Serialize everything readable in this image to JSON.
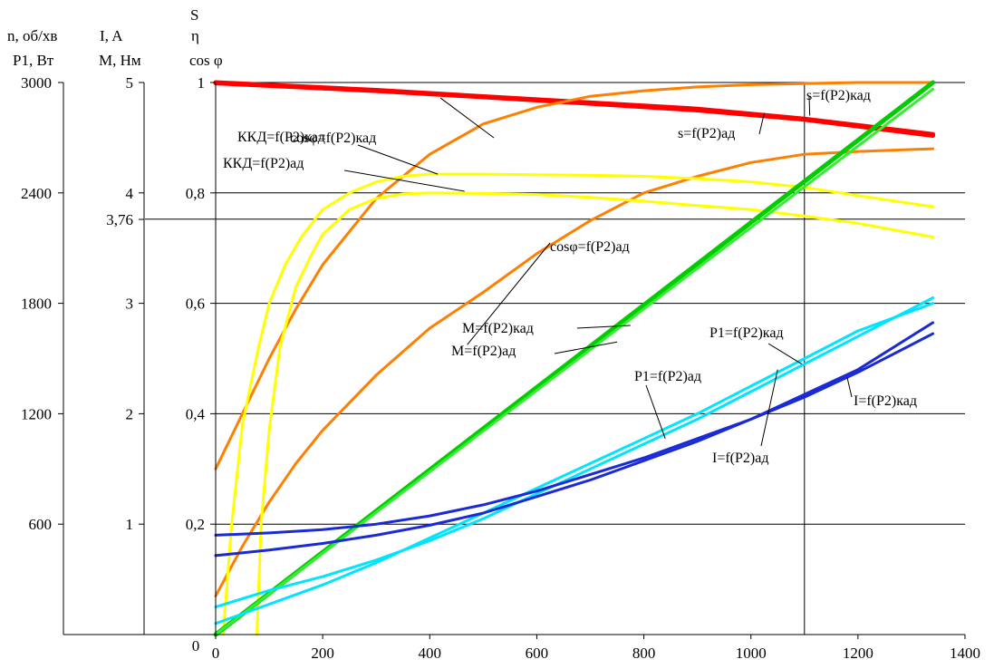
{
  "chart_data": {
    "type": "line",
    "title": "",
    "axes": {
      "x": {
        "ticks": [
          "0",
          "200",
          "400",
          "600",
          "800",
          "1000",
          "1200",
          "1400"
        ],
        "range": [
          0,
          1400
        ],
        "label": ""
      },
      "y_speed_power": {
        "label_line1": "n, об/хв",
        "label_line2": "P1, Вт",
        "ticks": [
          "3000",
          "2400",
          "1800",
          "1200",
          "600"
        ],
        "range": [
          0,
          3000
        ]
      },
      "y_current_torque": {
        "label_line1": "I, A",
        "label_line2": "M, Нм",
        "ticks": [
          "5",
          "4",
          "3,76",
          "3",
          "2",
          "1"
        ],
        "range": [
          0,
          5
        ]
      },
      "y_ratio": {
        "label_line1": "S",
        "label_line2": "η",
        "label_line3": "cos φ",
        "ticks": [
          "1",
          "0,8",
          "0,6",
          "0,4",
          "0,2"
        ],
        "range": [
          0,
          1
        ]
      },
      "origin_label": "0"
    },
    "reference_lines": {
      "x": 1100,
      "y_ratio": 0.7525
    },
    "grid": true,
    "series": [
      {
        "name": "s=f(P2)кад",
        "color": "#ff0000",
        "width": 5,
        "x": [
          0,
          300,
          600,
          900,
          1100,
          1340
        ],
        "y": [
          1,
          0.986,
          0.969,
          0.952,
          0.934,
          0.906
        ]
      },
      {
        "name": "s=f(P2)ад",
        "color": "#ff0000",
        "width": 5,
        "x": [
          0,
          300,
          600,
          900,
          1100,
          1340
        ],
        "y": [
          0.999,
          0.985,
          0.968,
          0.95,
          0.933,
          0.904
        ]
      },
      {
        "name": "cosφ=f(P2)кад",
        "color": "#ff8000",
        "width": 3,
        "x": [
          0,
          50,
          100,
          150,
          200,
          300,
          400,
          500,
          600,
          700,
          800,
          900,
          1000,
          1100,
          1200,
          1340
        ],
        "y": [
          0.3,
          0.4,
          0.5,
          0.59,
          0.67,
          0.79,
          0.87,
          0.925,
          0.955,
          0.975,
          0.985,
          0.992,
          0.996,
          0.998,
          1,
          1
        ]
      },
      {
        "name": "cosφ=f(P2)ад",
        "color": "#ff8000",
        "width": 3,
        "x": [
          0,
          50,
          100,
          150,
          200,
          300,
          400,
          500,
          600,
          700,
          800,
          900,
          1000,
          1100,
          1200,
          1340
        ],
        "y": [
          0.07,
          0.16,
          0.24,
          0.31,
          0.37,
          0.47,
          0.555,
          0.62,
          0.69,
          0.75,
          0.8,
          0.83,
          0.855,
          0.87,
          0.875,
          0.88
        ]
      },
      {
        "name": "ККД=f(P2)кад",
        "color": "#ffff00",
        "width": 3,
        "x": [
          14,
          30,
          50,
          80,
          100,
          130,
          160,
          200,
          250,
          300,
          350,
          400,
          500,
          600,
          700,
          800,
          900,
          1000,
          1100,
          1200,
          1340
        ],
        "y": [
          0,
          0.2,
          0.38,
          0.52,
          0.6,
          0.67,
          0.72,
          0.77,
          0.8,
          0.82,
          0.83,
          0.834,
          0.834,
          0.833,
          0.832,
          0.83,
          0.826,
          0.82,
          0.81,
          0.795,
          0.775
        ]
      },
      {
        "name": "ККД=f(P2)ад",
        "color": "#ffff00",
        "width": 3,
        "x": [
          77,
          85,
          100,
          120,
          150,
          180,
          200,
          250,
          300,
          350,
          400,
          500,
          600,
          700,
          800,
          900,
          1000,
          1100,
          1200,
          1340
        ],
        "y": [
          0,
          0.2,
          0.37,
          0.52,
          0.63,
          0.69,
          0.725,
          0.77,
          0.79,
          0.798,
          0.8,
          0.799,
          0.797,
          0.792,
          0.785,
          0.777,
          0.77,
          0.758,
          0.745,
          0.72
        ]
      },
      {
        "name": "M=f(P2)кад",
        "color": "#00cc00",
        "width": 5,
        "x": [
          0,
          1340
        ],
        "y": [
          0,
          1
        ]
      },
      {
        "name": "M=f(P2)ад",
        "color": "#33ee33",
        "width": 3,
        "x": [
          0,
          1340
        ],
        "y": [
          0,
          0.988
        ]
      },
      {
        "name": "P1=f(P2)кад",
        "color": "#00e5ff",
        "width": 3,
        "x": [
          0,
          100,
          200,
          300,
          400,
          500,
          600,
          700,
          800,
          900,
          1000,
          1100,
          1200,
          1340
        ],
        "y": [
          0.05,
          0.08,
          0.105,
          0.135,
          0.17,
          0.21,
          0.255,
          0.3,
          0.345,
          0.39,
          0.44,
          0.49,
          0.54,
          0.61
        ]
      },
      {
        "name": "P1=f(P2)ад",
        "color": "#00e5ff",
        "width": 3,
        "x": [
          0,
          100,
          200,
          300,
          400,
          500,
          600,
          700,
          800,
          900,
          1000,
          1100,
          1200,
          1340
        ],
        "y": [
          0.02,
          0.055,
          0.09,
          0.13,
          0.175,
          0.22,
          0.265,
          0.31,
          0.355,
          0.4,
          0.45,
          0.5,
          0.55,
          0.6
        ]
      },
      {
        "name": "I=f(P2)кад",
        "color": "#1a2ad6",
        "width": 3,
        "x": [
          0,
          100,
          200,
          300,
          400,
          500,
          600,
          700,
          800,
          900,
          1000,
          1100,
          1200,
          1340
        ],
        "y": [
          0.143,
          0.153,
          0.165,
          0.18,
          0.198,
          0.22,
          0.25,
          0.28,
          0.315,
          0.35,
          0.39,
          0.43,
          0.475,
          0.545
        ]
      },
      {
        "name": "I=f(P2)ад",
        "color": "#1a2ad6",
        "width": 3,
        "x": [
          0,
          100,
          200,
          300,
          400,
          500,
          600,
          700,
          800,
          900,
          1000,
          1100,
          1200,
          1340
        ],
        "y": [
          0.18,
          0.184,
          0.19,
          0.2,
          0.215,
          0.235,
          0.26,
          0.29,
          0.32,
          0.355,
          0.39,
          0.435,
          0.48,
          0.565
        ]
      }
    ],
    "annotations": [
      {
        "text": "cosφ=f(P2)кад",
        "pointer_to": [
          420,
          0.972
        ]
      },
      {
        "text": "s=f(P2)кад",
        "pointer_to": [
          1110,
          0.94
        ]
      },
      {
        "text": "s=f(P2)ад",
        "pointer_to": [
          1025,
          0.945
        ]
      },
      {
        "text": "ККД=f(P2)кад",
        "pointer_to": [
          415,
          0.834
        ]
      },
      {
        "text": "ККД=f(P2)ад",
        "pointer_to": [
          465,
          0.803
        ]
      },
      {
        "text": "cosφ=f(P2)ад",
        "pointer_to": [
          470,
          0.525
        ]
      },
      {
        "text": "M=f(P2)кад",
        "pointer_to": [
          775,
          0.56
        ]
      },
      {
        "text": "M=f(P2)ад",
        "pointer_to": [
          750,
          0.53
        ]
      },
      {
        "text": "P1=f(P2)кад",
        "pointer_to": [
          1095,
          0.49
        ]
      },
      {
        "text": "P1=f(P2)ад",
        "pointer_to": [
          840,
          0.355
        ]
      },
      {
        "text": "I=f(P2)кад",
        "pointer_to": [
          1180,
          0.465
        ]
      },
      {
        "text": "I=f(P2)ад",
        "pointer_to": [
          1050,
          0.48
        ]
      }
    ]
  }
}
